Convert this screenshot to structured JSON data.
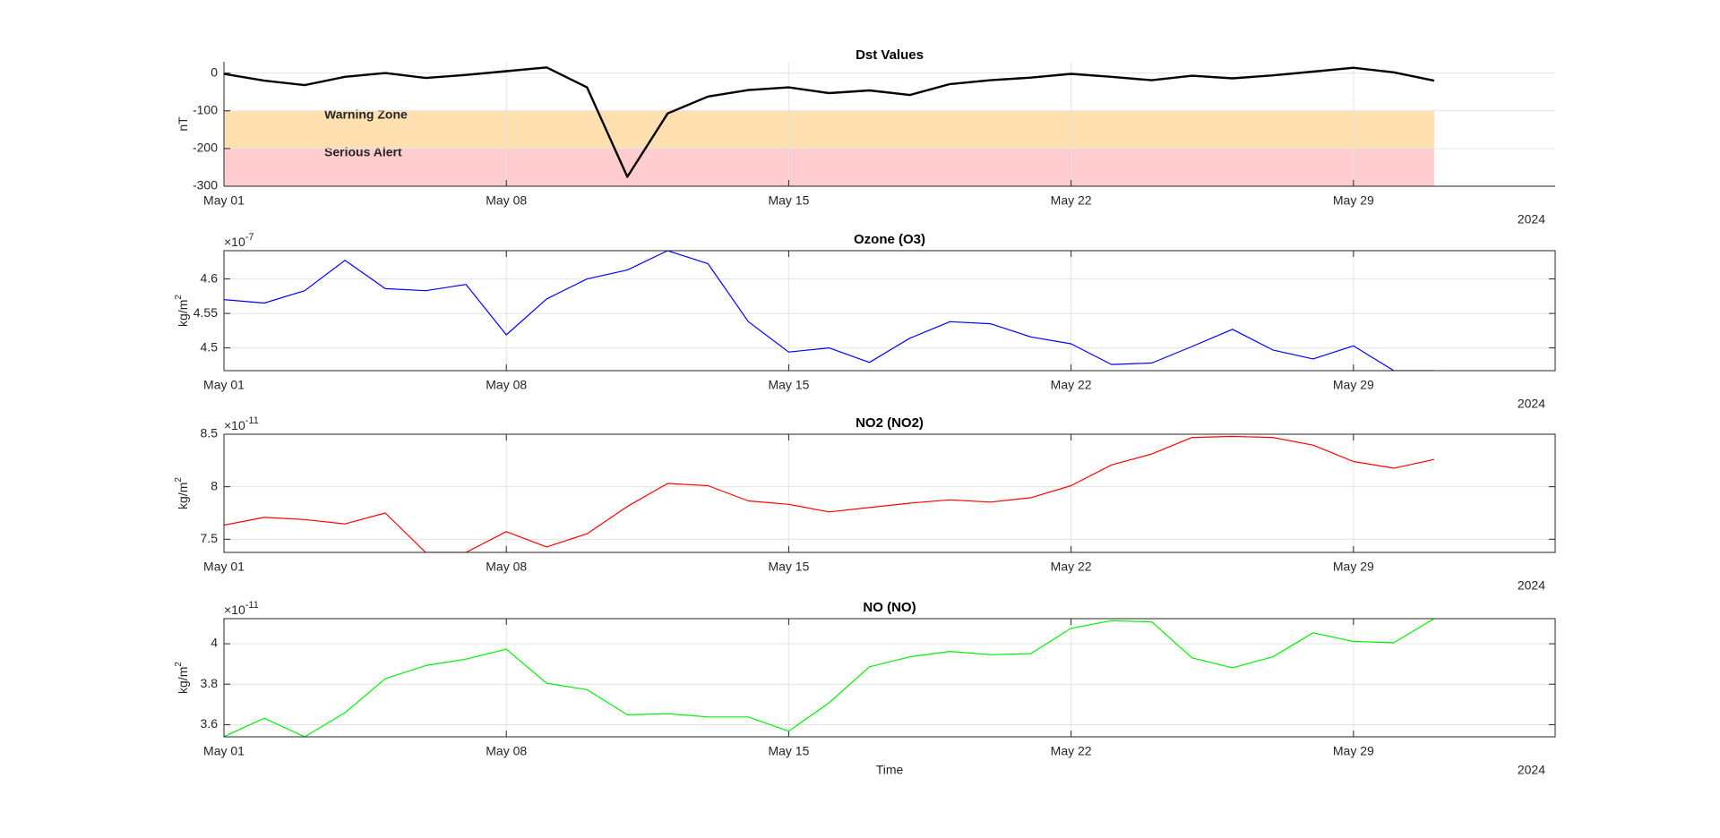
{
  "chart_data": [
    {
      "type": "line",
      "title": "Dst Values",
      "ylabel": "nT",
      "year_label": "2024",
      "grid": true,
      "box": false,
      "x": [
        "2024-05-01",
        "2024-05-02",
        "2024-05-03",
        "2024-05-04",
        "2024-05-05",
        "2024-05-06",
        "2024-05-07",
        "2024-05-08",
        "2024-05-09",
        "2024-05-10",
        "2024-05-11",
        "2024-05-12",
        "2024-05-13",
        "2024-05-14",
        "2024-05-15",
        "2024-05-16",
        "2024-05-17",
        "2024-05-18",
        "2024-05-19",
        "2024-05-20",
        "2024-05-21",
        "2024-05-22",
        "2024-05-23",
        "2024-05-24",
        "2024-05-25",
        "2024-05-26",
        "2024-05-27",
        "2024-05-28",
        "2024-05-29",
        "2024-05-30",
        "2024-05-31"
      ],
      "color": "#000000",
      "line_width": 2.4,
      "values": [
        -2,
        -20,
        -32,
        -10,
        0,
        -13,
        -5,
        5,
        15,
        -38,
        -275,
        -107,
        -62,
        -45,
        -38,
        -53,
        -46,
        -58,
        -29,
        -19,
        -12,
        -2,
        -10,
        -19,
        -7,
        -14,
        -6,
        4,
        14,
        2,
        -20
      ],
      "bands": [
        {
          "label": "Warning Zone",
          "range": [
            -200,
            -100
          ],
          "color": "#ffe0b0",
          "text_color": "#ff8c00"
        },
        {
          "label": "Serious Alert",
          "range": [
            -300,
            -200
          ],
          "color": "#ffcccf",
          "text_color": "#cc0000"
        }
      ],
      "xlim": [
        "2024-05-01",
        "2024-06-03"
      ],
      "xticks": [
        {
          "value": "2024-05-01",
          "label": "May 01"
        },
        {
          "value": "2024-05-08",
          "label": "May 08"
        },
        {
          "value": "2024-05-15",
          "label": "May 15"
        },
        {
          "value": "2024-05-22",
          "label": "May 22"
        },
        {
          "value": "2024-05-29",
          "label": "May 29"
        }
      ],
      "ylim": [
        -300,
        30
      ],
      "yticks": [
        -300,
        -200,
        -100,
        0
      ]
    },
    {
      "type": "line",
      "title": "Ozone (O3)",
      "ylabel": "kg/m",
      "ylabel_sup": "2",
      "y_multiplier": "×10",
      "y_exponent": "-7",
      "year_label": "2024",
      "grid": true,
      "box": true,
      "x": [
        "2024-05-01",
        "2024-05-02",
        "2024-05-03",
        "2024-05-04",
        "2024-05-05",
        "2024-05-06",
        "2024-05-07",
        "2024-05-08",
        "2024-05-09",
        "2024-05-10",
        "2024-05-11",
        "2024-05-12",
        "2024-05-13",
        "2024-05-14",
        "2024-05-15",
        "2024-05-16",
        "2024-05-17",
        "2024-05-18",
        "2024-05-19",
        "2024-05-20",
        "2024-05-21",
        "2024-05-22",
        "2024-05-23",
        "2024-05-24",
        "2024-05-25",
        "2024-05-26",
        "2024-05-27",
        "2024-05-28",
        "2024-05-29",
        "2024-05-30",
        "2024-05-31"
      ],
      "color": "#0000ff",
      "line_width": 1.2,
      "values": [
        4.57,
        4.565,
        4.583,
        4.627,
        4.586,
        4.583,
        4.592,
        4.519,
        4.571,
        4.6,
        4.613,
        4.641,
        4.622,
        4.538,
        4.494,
        4.5,
        4.479,
        4.514,
        4.538,
        4.535,
        4.516,
        4.506,
        4.476,
        4.478,
        4.502,
        4.527,
        4.497,
        4.484,
        4.503,
        4.467,
        4.467
      ],
      "xlim": [
        "2024-05-01",
        "2024-06-03"
      ],
      "xticks": [
        {
          "value": "2024-05-01",
          "label": "May 01"
        },
        {
          "value": "2024-05-08",
          "label": "May 08"
        },
        {
          "value": "2024-05-15",
          "label": "May 15"
        },
        {
          "value": "2024-05-22",
          "label": "May 22"
        },
        {
          "value": "2024-05-29",
          "label": "May 29"
        }
      ],
      "ylim": [
        4.467,
        4.641
      ],
      "yticks": [
        4.5,
        4.55,
        4.6
      ]
    },
    {
      "type": "line",
      "title": "NO2 (NO2)",
      "ylabel": "kg/m",
      "ylabel_sup": "2",
      "y_multiplier": "×10",
      "y_exponent": "-11",
      "year_label": "2024",
      "grid": true,
      "box": true,
      "x": [
        "2024-05-01",
        "2024-05-02",
        "2024-05-03",
        "2024-05-04",
        "2024-05-05",
        "2024-05-06",
        "2024-05-07",
        "2024-05-08",
        "2024-05-09",
        "2024-05-10",
        "2024-05-11",
        "2024-05-12",
        "2024-05-13",
        "2024-05-14",
        "2024-05-15",
        "2024-05-16",
        "2024-05-17",
        "2024-05-18",
        "2024-05-19",
        "2024-05-20",
        "2024-05-21",
        "2024-05-22",
        "2024-05-23",
        "2024-05-24",
        "2024-05-25",
        "2024-05-26",
        "2024-05-27",
        "2024-05-28",
        "2024-05-29",
        "2024-05-30",
        "2024-05-31"
      ],
      "color": "#ff0000",
      "line_width": 1.2,
      "values": [
        7.635,
        7.708,
        7.688,
        7.646,
        7.75,
        7.375,
        7.375,
        7.573,
        7.427,
        7.552,
        7.812,
        8.031,
        8.01,
        7.865,
        7.833,
        7.76,
        7.802,
        7.844,
        7.875,
        7.854,
        7.896,
        8.01,
        8.208,
        8.312,
        8.469,
        8.479,
        8.469,
        8.396,
        8.24,
        8.177,
        8.26
      ],
      "xlim": [
        "2024-05-01",
        "2024-06-03"
      ],
      "xticks": [
        {
          "value": "2024-05-01",
          "label": "May 01"
        },
        {
          "value": "2024-05-08",
          "label": "May 08"
        },
        {
          "value": "2024-05-15",
          "label": "May 15"
        },
        {
          "value": "2024-05-22",
          "label": "May 22"
        },
        {
          "value": "2024-05-29",
          "label": "May 29"
        }
      ],
      "ylim": [
        7.375,
        8.5
      ],
      "yticks": [
        7.5,
        8,
        8.5
      ]
    },
    {
      "type": "line",
      "title": "NO (NO)",
      "ylabel": "kg/m",
      "ylabel_sup": "2",
      "y_multiplier": "×10",
      "y_exponent": "-11",
      "year_label": "2024",
      "xlabel": "Time",
      "grid": true,
      "box": true,
      "x": [
        "2024-05-01",
        "2024-05-02",
        "2024-05-03",
        "2024-05-04",
        "2024-05-05",
        "2024-05-06",
        "2024-05-07",
        "2024-05-08",
        "2024-05-09",
        "2024-05-10",
        "2024-05-11",
        "2024-05-12",
        "2024-05-13",
        "2024-05-14",
        "2024-05-15",
        "2024-05-16",
        "2024-05-17",
        "2024-05-18",
        "2024-05-19",
        "2024-05-20",
        "2024-05-21",
        "2024-05-22",
        "2024-05-23",
        "2024-05-24",
        "2024-05-25",
        "2024-05-26",
        "2024-05-27",
        "2024-05-28",
        "2024-05-29",
        "2024-05-30",
        "2024-05-31"
      ],
      "color": "#00ee00",
      "line_width": 1.2,
      "values": [
        3.541,
        3.632,
        3.54,
        3.659,
        3.827,
        3.892,
        3.924,
        3.973,
        3.805,
        3.773,
        3.649,
        3.654,
        3.638,
        3.638,
        3.568,
        3.708,
        3.886,
        3.935,
        3.962,
        3.946,
        3.951,
        4.076,
        4.114,
        4.108,
        3.93,
        3.881,
        3.935,
        4.054,
        4.011,
        4.005,
        4.124
      ],
      "xlim": [
        "2024-05-01",
        "2024-06-03"
      ],
      "xticks": [
        {
          "value": "2024-05-01",
          "label": "May 01"
        },
        {
          "value": "2024-05-08",
          "label": "May 08"
        },
        {
          "value": "2024-05-15",
          "label": "May 15"
        },
        {
          "value": "2024-05-22",
          "label": "May 22"
        },
        {
          "value": "2024-05-29",
          "label": "May 29"
        }
      ],
      "ylim": [
        3.54,
        4.124
      ],
      "yticks": [
        3.6,
        3.8,
        4
      ]
    }
  ]
}
